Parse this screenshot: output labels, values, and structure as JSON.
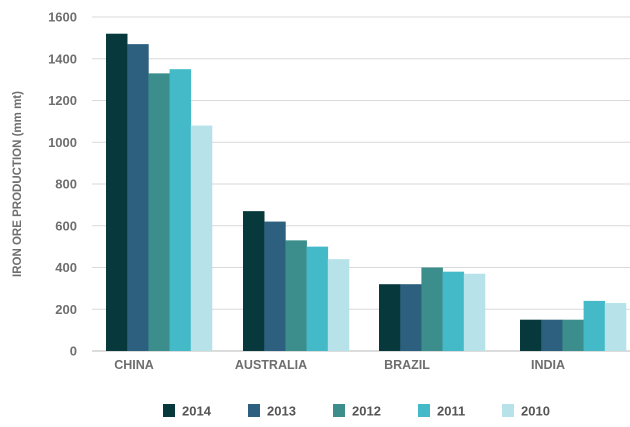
{
  "chart_data": {
    "type": "bar",
    "ylabel": "IRON ORE PRODUCTION (mm mt)",
    "xlabel": "",
    "ylim": [
      0,
      1600
    ],
    "yticks": [
      0,
      200,
      400,
      600,
      800,
      1000,
      1200,
      1400,
      1600
    ],
    "grid": true,
    "legend_position": "bottom",
    "categories": [
      "CHINA",
      "AUSTRALIA",
      "BRAZIL",
      "INDIA"
    ],
    "series": [
      {
        "name": "2014",
        "color": "#07393c",
        "values": [
          1520,
          670,
          320,
          150
        ]
      },
      {
        "name": "2013",
        "color": "#2d5f7e",
        "values": [
          1470,
          620,
          320,
          150
        ]
      },
      {
        "name": "2012",
        "color": "#3b8e8c",
        "values": [
          1330,
          530,
          400,
          150
        ]
      },
      {
        "name": "2011",
        "color": "#44b9c7",
        "values": [
          1350,
          500,
          380,
          240
        ]
      },
      {
        "name": "2010",
        "color": "#b8e2ea",
        "values": [
          1080,
          440,
          370,
          230
        ]
      }
    ]
  }
}
